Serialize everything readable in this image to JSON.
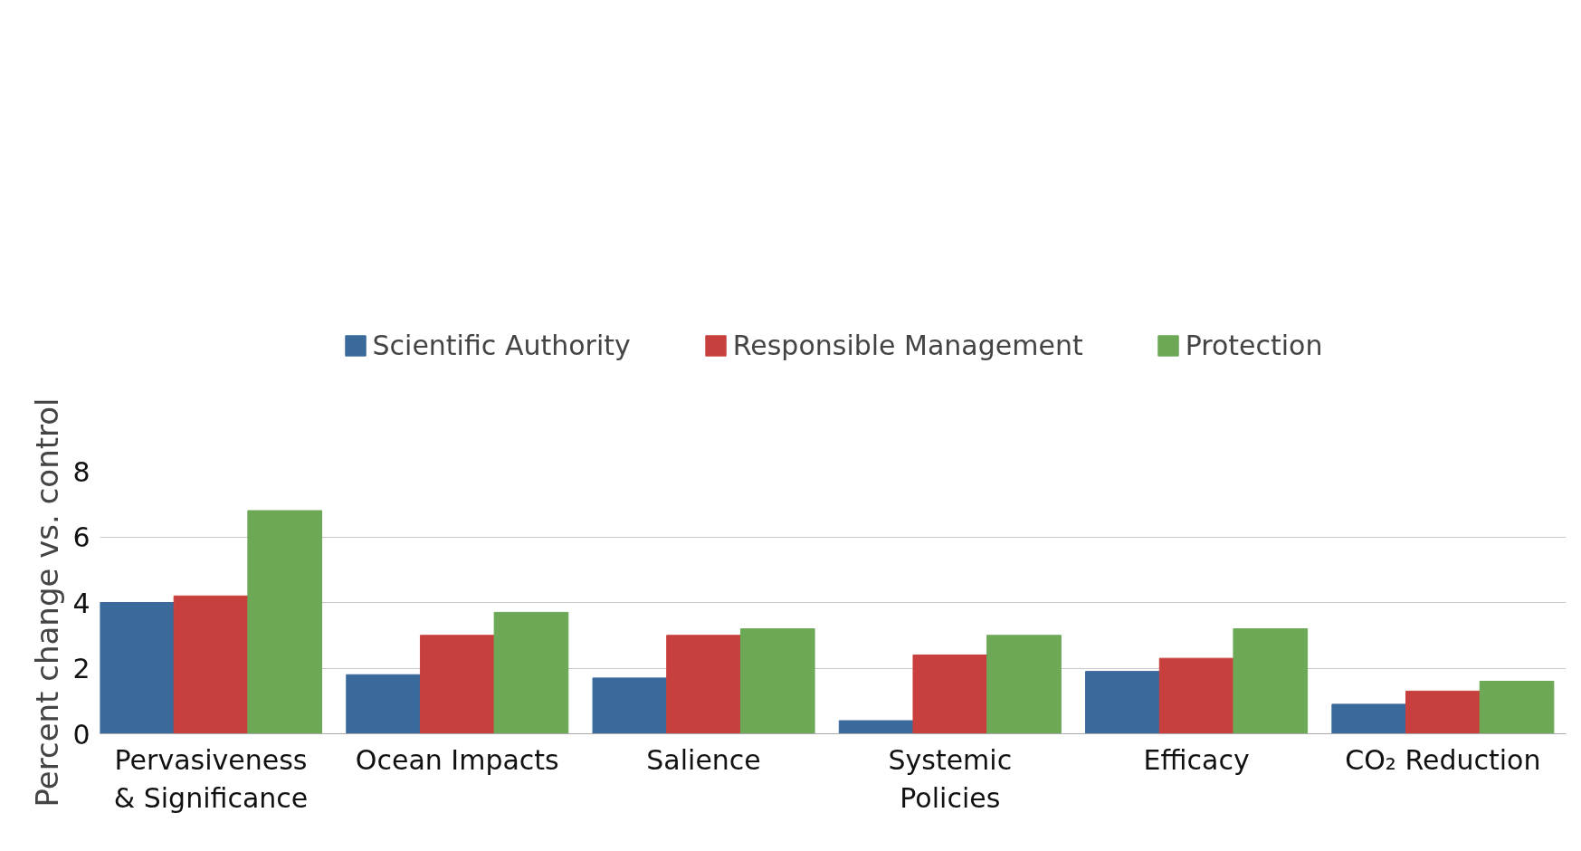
{
  "chart_data": {
    "type": "bar",
    "ylabel": "Percent change vs. control",
    "categories": [
      "Pervasiveness\n& Significance",
      "Ocean Impacts",
      "Salience",
      "Systemic\nPolicies",
      "Efficacy",
      "CO₂ Reduction"
    ],
    "series": [
      {
        "name": "Scientific Authority",
        "color": "#3a6a9c",
        "values": [
          4.0,
          1.8,
          1.7,
          0.4,
          1.9,
          0.9
        ]
      },
      {
        "name": "Responsible Management",
        "color": "#c8403e",
        "values": [
          4.2,
          3.0,
          3.0,
          2.4,
          2.3,
          1.3
        ]
      },
      {
        "name": "Protection",
        "color": "#6ca856",
        "values": [
          6.8,
          3.7,
          3.2,
          3.0,
          3.2,
          1.6
        ]
      }
    ],
    "ylim": [
      0,
      8
    ],
    "yticks": [
      0,
      2,
      4,
      6,
      8
    ],
    "grid": "y",
    "legend": "top"
  }
}
